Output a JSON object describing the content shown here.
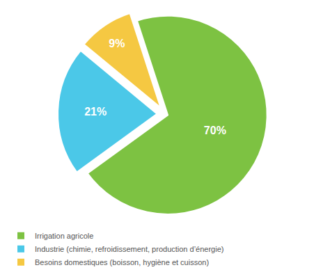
{
  "chart_data": {
    "type": "pie",
    "categories": [
      "Irrigation agricole",
      "Industrie (chimie, refroidissement, production d’énergie)",
      "Besoins domestiques (boisson, hygiène et cuisson)"
    ],
    "values": [
      70,
      21,
      9
    ],
    "value_labels": [
      "70%",
      "21%",
      "9%"
    ],
    "colors": [
      "#7dc242",
      "#4bc8e8",
      "#f5c842"
    ],
    "data_labels": true,
    "legend": "bottom"
  }
}
